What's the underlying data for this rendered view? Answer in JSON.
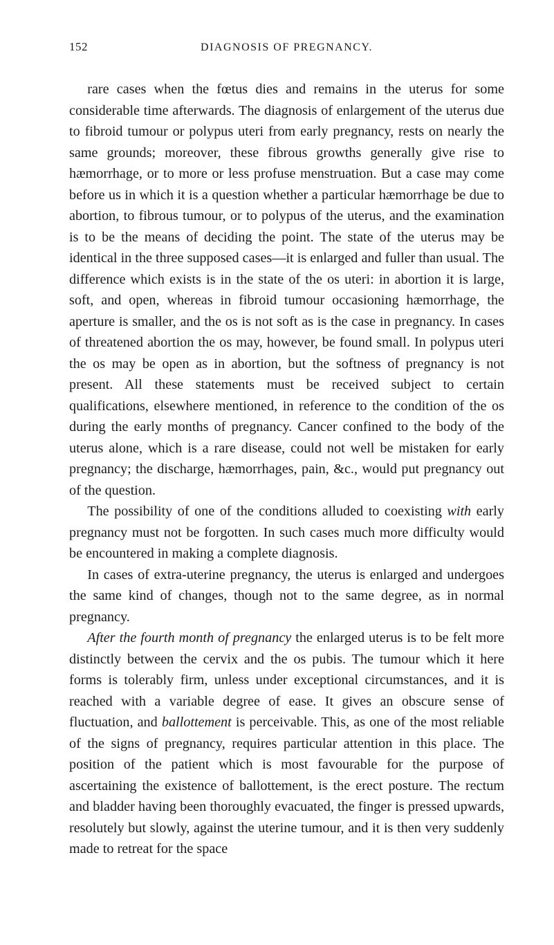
{
  "page_number": "152",
  "running_title": "DIAGNOSIS OF PREGNANCY.",
  "paragraphs": [
    "rare cases when the fœtus dies and remains in the uterus for some considerable time afterwards. The diagnosis of enlargement of the uterus due to fibroid tumour or polypus uteri from early pregnancy, rests on nearly the same grounds; moreover, these fibrous growths generally give rise to hæmorrhage, or to more or less profuse menstruation. But a case may come before us in which it is a question whether a particular hæmorrhage be due to abortion, to fibrous tumour, or to polypus of the uterus, and the examination is to be the means of deciding the point. The state of the uterus may be identical in the three supposed cases—it is enlarged and fuller than usual. The difference which exists is in the state of the os uteri: in abortion it is large, soft, and open, whereas in fibroid tumour occasioning hæmorrhage, the aperture is smaller, and the os is not soft as is the case in pregnancy. In cases of threatened abortion the os may, however, be found small. In polypus uteri the os may be open as in abortion, but the softness of pregnancy is not present. All these statements must be received subject to certain qualifications, elsewhere mentioned, in reference to the condition of the os during the early months of pregnancy. Cancer confined to the body of the uterus alone, which is a rare disease, could not well be mistaken for early pregnancy; the discharge, hæmorrhages, pain, &c., would put pregnancy out of the question.",
    "The possibility of one of the conditions alluded to coexisting <i>with</i> early pregnancy must not be forgotten. In such cases much more difficulty would be encountered in making a complete diagnosis.",
    "In cases of extra-uterine pregnancy, the uterus is enlarged and undergoes the same kind of changes, though not to the same degree, as in normal pregnancy.",
    "<i>After the fourth month of pregnancy</i> the enlarged uterus is to be felt more distinctly between the cervix and the os pubis. The tumour which it here forms is tolerably firm, unless under exceptional circumstances, and it is reached with a variable degree of ease. It gives an obscure sense of fluctuation, and <i>ballottement</i> is perceivable. This, as one of the most reliable of the signs of pregnancy, requires particular attention in this place. The position of the patient which is most favourable for the purpose of ascertaining the existence of ballottement, is the erect posture. The rectum and bladder having been thoroughly evacuated, the finger is pressed upwards, resolutely but slowly, against the uterine tumour, and it is then very suddenly made to retreat for the space"
  ]
}
